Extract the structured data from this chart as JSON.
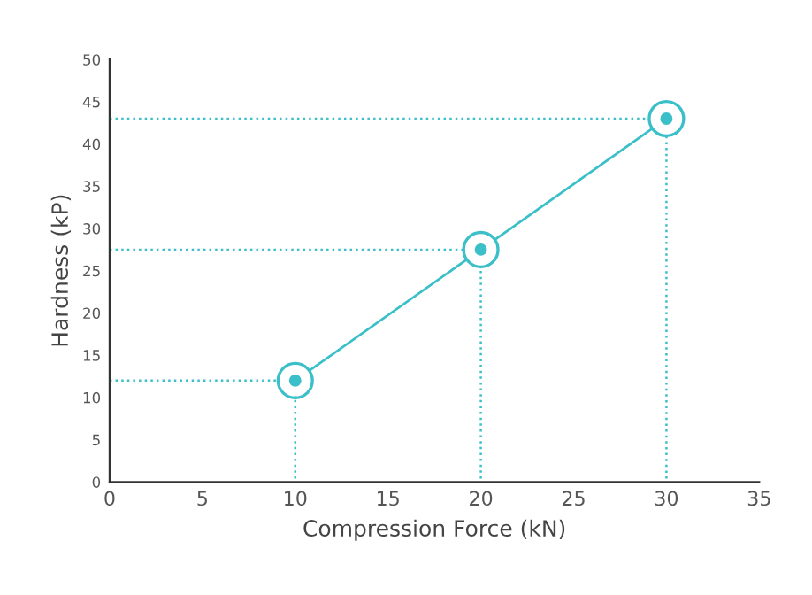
{
  "chart_data": {
    "type": "line",
    "xlabel": "Compression Force (kN)",
    "ylabel": "Hardness (kP)",
    "xlim": [
      0,
      35
    ],
    "xticks": [
      0,
      5,
      10,
      15,
      20,
      25,
      30,
      35
    ],
    "ylim": [
      0,
      50
    ],
    "yticks": [
      0,
      5,
      10,
      15,
      20,
      25,
      30,
      35,
      40,
      45,
      50
    ],
    "grid": false,
    "marker": "circle",
    "series": [
      {
        "color": "#3bbfc8",
        "x": [
          10,
          20,
          30
        ],
        "values": [
          12,
          27.5,
          43
        ]
      },
      {
        "color": "#3bbfc8",
        "type": "line",
        "line_style": "dotted",
        "marker": "none",
        "x": [
          0,
          10,
          10
        ],
        "values": [
          12,
          12,
          0
        ]
      },
      {
        "color": "#3bbfc8",
        "type": "line",
        "line_style": "dotted",
        "marker": "none",
        "x": [
          0,
          20,
          20
        ],
        "values": [
          27.5,
          27.5,
          0
        ]
      },
      {
        "color": "#3bbfc8",
        "type": "line",
        "line_style": "dotted",
        "marker": "none",
        "x": [
          0,
          30,
          30
        ],
        "values": [
          43,
          43,
          0
        ]
      }
    ]
  }
}
